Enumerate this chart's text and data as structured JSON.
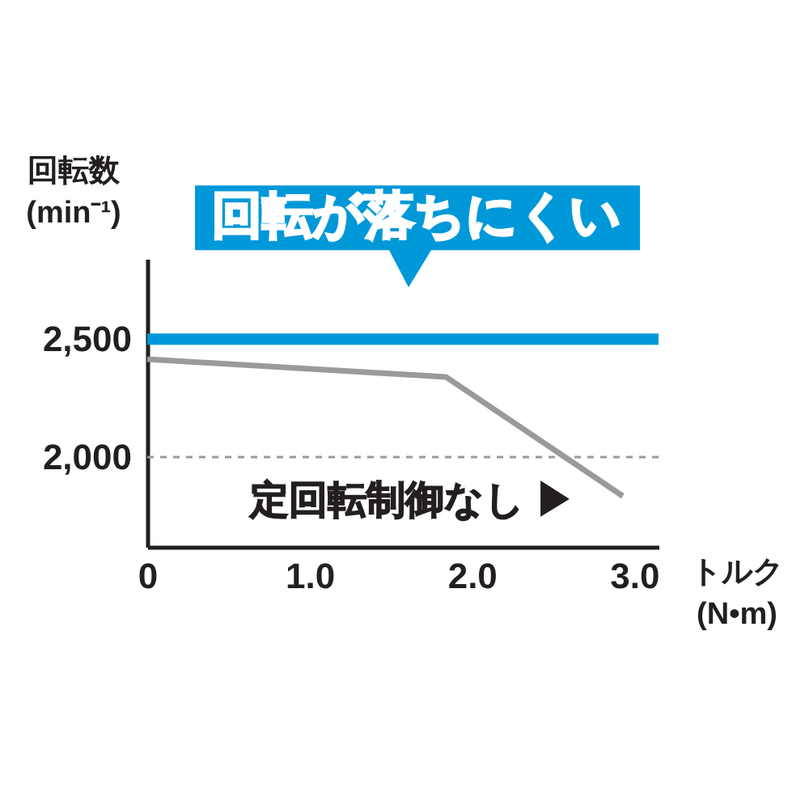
{
  "chart_data": {
    "type": "line",
    "ylabel": "回転数\n(min⁻¹)",
    "xlabel": "トルク\n(N•m)",
    "xlim": [
      0,
      3.15
    ],
    "ylim": [
      1620,
      2840
    ],
    "xticks": [
      0,
      {
        "value": 1,
        "label": "1.0"
      },
      {
        "value": 2,
        "label": "2.0"
      },
      {
        "value": 3,
        "label": "3.0"
      }
    ],
    "yticks": [
      {
        "value": 2000,
        "label": "2,000"
      },
      {
        "value": 2500,
        "label": "2,500"
      }
    ],
    "series": [
      {
        "color": "#0098d8",
        "x": [
          0,
          3.15
        ],
        "values": [
          2500,
          2500
        ]
      },
      {
        "color": "#9a9a9a",
        "x": [
          0,
          1.84,
          2.93
        ],
        "values": [
          2415,
          2340,
          1835
        ]
      }
    ],
    "ref_lines": [
      {
        "axis": "y",
        "value": 2000,
        "color": "#9a9a9a",
        "line_style": "dashed"
      }
    ],
    "annotations": [
      {
        "text": "回転が落ちにくい",
        "x": 1.6,
        "y": 2500
      },
      "定回転制御なし ▶"
    ],
    "grid": false,
    "marker": "none",
    "line_style": "solid"
  }
}
